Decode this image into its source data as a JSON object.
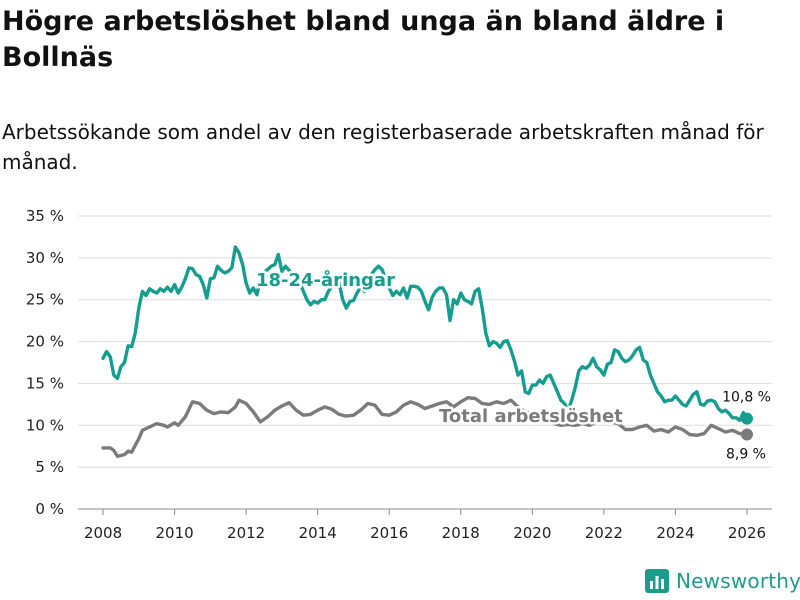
{
  "title": "Högre arbetslöshet bland unga än bland äldre i Bollnäs",
  "subtitle": "Arbetssökande som andel av den registerbaserade arbetskraften månad för månad.",
  "brand": "Newsworthy",
  "colors": {
    "youth": "#159e8f",
    "total": "#7b7b7b",
    "grid": "#dddddd"
  },
  "chart_data": {
    "type": "line",
    "title": "Högre arbetslöshet bland unga än bland äldre i Bollnäs",
    "xlabel": "",
    "ylabel": "",
    "xlim": [
      2007.3,
      2026.7
    ],
    "ylim": [
      0,
      35
    ],
    "yticks": [
      0,
      5,
      10,
      15,
      20,
      25,
      30,
      35
    ],
    "ytick_labels": [
      "0 %",
      "5 %",
      "10 %",
      "15 %",
      "20 %",
      "25 %",
      "30 %",
      "35 %"
    ],
    "xticks": [
      2008,
      2010,
      2012,
      2014,
      2016,
      2018,
      2020,
      2022,
      2024,
      2026
    ],
    "xtick_labels": [
      "2008",
      "2010",
      "2012",
      "2014",
      "2016",
      "2018",
      "2020",
      "2022",
      "2024",
      "2026"
    ],
    "series": [
      {
        "name": "18-24-åringar",
        "label": "18-24-åringar",
        "end_label": "10,8 %",
        "points": [
          [
            2008.0,
            18.0
          ],
          [
            2008.1,
            18.8
          ],
          [
            2008.2,
            18.2
          ],
          [
            2008.3,
            16.0
          ],
          [
            2008.4,
            15.6
          ],
          [
            2008.5,
            17.0
          ],
          [
            2008.6,
            17.5
          ],
          [
            2008.7,
            19.5
          ],
          [
            2008.8,
            19.4
          ],
          [
            2008.9,
            21.0
          ],
          [
            2009.0,
            24.0
          ],
          [
            2009.1,
            26.0
          ],
          [
            2009.2,
            25.5
          ],
          [
            2009.3,
            26.3
          ],
          [
            2009.4,
            26.0
          ],
          [
            2009.5,
            25.8
          ],
          [
            2009.6,
            26.3
          ],
          [
            2009.7,
            26.0
          ],
          [
            2009.8,
            26.5
          ],
          [
            2009.9,
            26.0
          ],
          [
            2010.0,
            26.8
          ],
          [
            2010.1,
            25.8
          ],
          [
            2010.2,
            26.5
          ],
          [
            2010.3,
            27.5
          ],
          [
            2010.4,
            28.8
          ],
          [
            2010.5,
            28.7
          ],
          [
            2010.6,
            28.0
          ],
          [
            2010.7,
            27.8
          ],
          [
            2010.8,
            26.8
          ],
          [
            2010.9,
            25.2
          ],
          [
            2011.0,
            27.5
          ],
          [
            2011.1,
            27.6
          ],
          [
            2011.2,
            29.0
          ],
          [
            2011.3,
            28.5
          ],
          [
            2011.4,
            28.2
          ],
          [
            2011.5,
            28.4
          ],
          [
            2011.6,
            28.8
          ],
          [
            2011.7,
            31.3
          ],
          [
            2011.8,
            30.6
          ],
          [
            2011.9,
            29.2
          ],
          [
            2012.0,
            27.0
          ],
          [
            2012.1,
            25.8
          ],
          [
            2012.2,
            26.4
          ],
          [
            2012.3,
            25.6
          ],
          [
            2012.4,
            27.5
          ],
          [
            2012.5,
            28.3
          ],
          [
            2012.6,
            28.6
          ],
          [
            2012.7,
            29.0
          ],
          [
            2012.8,
            29.2
          ],
          [
            2012.9,
            30.4
          ],
          [
            2013.0,
            28.4
          ],
          [
            2013.1,
            29.0
          ],
          [
            2013.5,
            27.0
          ],
          [
            2013.6,
            26.0
          ],
          [
            2013.7,
            25.0
          ],
          [
            2013.8,
            24.4
          ],
          [
            2013.9,
            24.8
          ],
          [
            2014.0,
            24.6
          ],
          [
            2014.1,
            25.0
          ],
          [
            2014.2,
            25.0
          ],
          [
            2014.3,
            26.0
          ],
          [
            2014.4,
            26.6
          ],
          [
            2014.5,
            27.6
          ],
          [
            2014.6,
            27.0
          ],
          [
            2014.7,
            25.0
          ],
          [
            2014.8,
            24.0
          ],
          [
            2014.9,
            24.8
          ],
          [
            2015.0,
            24.9
          ],
          [
            2015.1,
            25.8
          ],
          [
            2015.2,
            26.5
          ],
          [
            2015.3,
            26.0
          ],
          [
            2015.4,
            27.0
          ],
          [
            2015.5,
            28.0
          ],
          [
            2015.6,
            28.6
          ],
          [
            2015.7,
            29.0
          ],
          [
            2015.8,
            28.6
          ],
          [
            2015.9,
            27.5
          ],
          [
            2016.0,
            26.4
          ],
          [
            2016.1,
            25.5
          ],
          [
            2016.2,
            26.0
          ],
          [
            2016.3,
            25.6
          ],
          [
            2016.4,
            26.4
          ],
          [
            2016.5,
            25.2
          ],
          [
            2016.6,
            26.6
          ],
          [
            2016.7,
            26.6
          ],
          [
            2016.8,
            26.5
          ],
          [
            2016.9,
            26.0
          ],
          [
            2017.0,
            24.8
          ],
          [
            2017.1,
            23.8
          ],
          [
            2017.2,
            25.3
          ],
          [
            2017.3,
            26.0
          ],
          [
            2017.4,
            26.4
          ],
          [
            2017.5,
            26.4
          ],
          [
            2017.6,
            25.6
          ],
          [
            2017.7,
            22.5
          ],
          [
            2017.8,
            25.0
          ],
          [
            2017.9,
            24.5
          ],
          [
            2018.0,
            25.8
          ],
          [
            2018.1,
            25.0
          ],
          [
            2018.2,
            24.8
          ],
          [
            2018.3,
            24.5
          ],
          [
            2018.4,
            26.0
          ],
          [
            2018.5,
            26.3
          ],
          [
            2018.6,
            24.0
          ],
          [
            2018.7,
            21.0
          ],
          [
            2018.8,
            19.5
          ],
          [
            2018.9,
            20.0
          ],
          [
            2019.0,
            19.8
          ],
          [
            2019.1,
            19.3
          ],
          [
            2019.2,
            20.0
          ],
          [
            2019.3,
            20.1
          ],
          [
            2019.4,
            19.0
          ],
          [
            2019.5,
            17.7
          ],
          [
            2019.6,
            16.0
          ],
          [
            2019.7,
            16.5
          ],
          [
            2019.8,
            14.0
          ],
          [
            2019.9,
            13.8
          ],
          [
            2020.0,
            14.8
          ],
          [
            2020.1,
            14.8
          ],
          [
            2020.2,
            15.4
          ],
          [
            2020.3,
            15.0
          ],
          [
            2020.4,
            15.8
          ],
          [
            2020.5,
            16.0
          ],
          [
            2020.6,
            15.0
          ],
          [
            2020.7,
            14.0
          ],
          [
            2020.8,
            13.0
          ],
          [
            2020.9,
            12.6
          ],
          [
            2021.0,
            11.8
          ],
          [
            2021.1,
            13.0
          ],
          [
            2021.2,
            14.5
          ],
          [
            2021.3,
            16.5
          ],
          [
            2021.4,
            17.0
          ],
          [
            2021.5,
            16.8
          ],
          [
            2021.6,
            17.2
          ],
          [
            2021.7,
            18.0
          ],
          [
            2021.8,
            17.0
          ],
          [
            2021.9,
            16.6
          ],
          [
            2022.0,
            16.0
          ],
          [
            2022.1,
            17.3
          ],
          [
            2022.2,
            17.5
          ],
          [
            2022.3,
            19.0
          ],
          [
            2022.4,
            18.8
          ],
          [
            2022.5,
            18.0
          ],
          [
            2022.6,
            17.6
          ],
          [
            2022.7,
            17.8
          ],
          [
            2022.8,
            18.3
          ],
          [
            2022.9,
            19.0
          ],
          [
            2023.0,
            19.3
          ],
          [
            2023.1,
            17.8
          ],
          [
            2023.2,
            17.5
          ],
          [
            2023.3,
            16.0
          ],
          [
            2023.4,
            15.0
          ],
          [
            2023.5,
            14.0
          ],
          [
            2023.6,
            13.5
          ],
          [
            2023.7,
            12.8
          ],
          [
            2023.8,
            13.0
          ],
          [
            2023.9,
            13.0
          ],
          [
            2024.0,
            13.5
          ],
          [
            2024.1,
            13.0
          ],
          [
            2024.2,
            12.5
          ],
          [
            2024.3,
            12.3
          ],
          [
            2024.4,
            13.0
          ],
          [
            2024.5,
            13.7
          ],
          [
            2024.6,
            14.0
          ],
          [
            2024.7,
            12.5
          ],
          [
            2024.8,
            12.4
          ],
          [
            2024.9,
            12.9
          ],
          [
            2025.0,
            13.0
          ],
          [
            2025.1,
            12.8
          ],
          [
            2025.2,
            12.0
          ],
          [
            2025.3,
            11.6
          ],
          [
            2025.4,
            11.8
          ],
          [
            2025.5,
            11.4
          ],
          [
            2025.6,
            10.9
          ],
          [
            2025.7,
            10.9
          ],
          [
            2025.8,
            10.6
          ],
          [
            2025.9,
            11.5
          ],
          [
            2026.0,
            10.8
          ]
        ]
      },
      {
        "name": "Total arbetslöshet",
        "label": "Total arbetslöshet",
        "end_label": "8,9 %",
        "points": [
          [
            2008.0,
            7.3
          ],
          [
            2008.2,
            7.3
          ],
          [
            2008.3,
            7.0
          ],
          [
            2008.4,
            6.3
          ],
          [
            2008.6,
            6.5
          ],
          [
            2008.7,
            6.9
          ],
          [
            2008.8,
            6.8
          ],
          [
            2008.9,
            7.6
          ],
          [
            2009.0,
            8.4
          ],
          [
            2009.1,
            9.4
          ],
          [
            2009.3,
            9.8
          ],
          [
            2009.5,
            10.2
          ],
          [
            2009.7,
            10.0
          ],
          [
            2009.8,
            9.8
          ],
          [
            2010.0,
            10.3
          ],
          [
            2010.1,
            10.0
          ],
          [
            2010.3,
            11.0
          ],
          [
            2010.5,
            12.8
          ],
          [
            2010.7,
            12.6
          ],
          [
            2010.9,
            11.8
          ],
          [
            2011.1,
            11.4
          ],
          [
            2011.3,
            11.6
          ],
          [
            2011.5,
            11.5
          ],
          [
            2011.7,
            12.2
          ],
          [
            2011.8,
            13.0
          ],
          [
            2012.0,
            12.6
          ],
          [
            2012.2,
            11.6
          ],
          [
            2012.4,
            10.4
          ],
          [
            2012.6,
            11.0
          ],
          [
            2012.8,
            11.8
          ],
          [
            2013.0,
            12.3
          ],
          [
            2013.2,
            12.7
          ],
          [
            2013.4,
            11.8
          ],
          [
            2013.6,
            11.2
          ],
          [
            2013.8,
            11.3
          ],
          [
            2014.0,
            11.8
          ],
          [
            2014.2,
            12.2
          ],
          [
            2014.4,
            11.9
          ],
          [
            2014.6,
            11.3
          ],
          [
            2014.8,
            11.1
          ],
          [
            2015.0,
            11.2
          ],
          [
            2015.2,
            11.8
          ],
          [
            2015.4,
            12.6
          ],
          [
            2015.6,
            12.4
          ],
          [
            2015.8,
            11.3
          ],
          [
            2016.0,
            11.2
          ],
          [
            2016.2,
            11.6
          ],
          [
            2016.4,
            12.4
          ],
          [
            2016.6,
            12.8
          ],
          [
            2016.8,
            12.5
          ],
          [
            2017.0,
            12.0
          ],
          [
            2017.2,
            12.3
          ],
          [
            2017.4,
            12.6
          ],
          [
            2017.6,
            12.8
          ],
          [
            2017.8,
            12.2
          ],
          [
            2018.0,
            12.8
          ],
          [
            2018.2,
            13.3
          ],
          [
            2018.4,
            13.2
          ],
          [
            2018.6,
            12.6
          ],
          [
            2018.8,
            12.5
          ],
          [
            2019.0,
            12.8
          ],
          [
            2019.2,
            12.6
          ],
          [
            2019.4,
            13.0
          ],
          [
            2019.6,
            12.2
          ],
          [
            2019.8,
            11.6
          ],
          [
            2020.0,
            11.4
          ],
          [
            2020.2,
            11.0
          ],
          [
            2020.4,
            10.8
          ],
          [
            2020.6,
            10.2
          ],
          [
            2020.8,
            10.0
          ],
          [
            2021.0,
            10.1
          ],
          [
            2021.2,
            10.0
          ],
          [
            2021.4,
            10.2
          ],
          [
            2021.6,
            10.0
          ],
          [
            2021.8,
            10.4
          ],
          [
            2022.0,
            10.6
          ],
          [
            2022.2,
            10.4
          ],
          [
            2022.4,
            10.2
          ],
          [
            2022.6,
            9.5
          ],
          [
            2022.8,
            9.5
          ],
          [
            2023.0,
            9.8
          ],
          [
            2023.2,
            10.0
          ],
          [
            2023.4,
            9.3
          ],
          [
            2023.6,
            9.5
          ],
          [
            2023.8,
            9.2
          ],
          [
            2024.0,
            9.8
          ],
          [
            2024.2,
            9.5
          ],
          [
            2024.4,
            8.9
          ],
          [
            2024.6,
            8.8
          ],
          [
            2024.8,
            9.0
          ],
          [
            2025.0,
            10.0
          ],
          [
            2025.2,
            9.6
          ],
          [
            2025.4,
            9.2
          ],
          [
            2025.6,
            9.4
          ],
          [
            2025.8,
            9.0
          ],
          [
            2026.0,
            8.9
          ]
        ]
      }
    ]
  }
}
